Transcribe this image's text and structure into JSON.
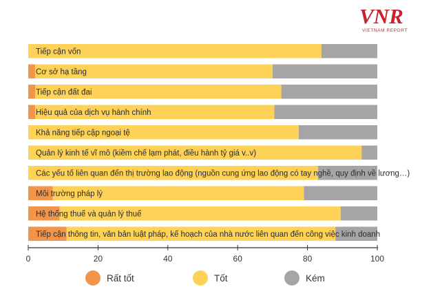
{
  "brand": {
    "logo_text": "VNR",
    "subtitle": "VIETNAM REPORT",
    "color": "#c8232c"
  },
  "chart_data": {
    "type": "bar",
    "orientation": "horizontal",
    "stacked": true,
    "title": "",
    "xlabel": "",
    "ylabel": "",
    "xlim": [
      0,
      100
    ],
    "x_ticks": [
      0,
      20,
      40,
      60,
      80,
      100
    ],
    "grid": false,
    "legend_position": "bottom",
    "categories": [
      "Tiếp cận vốn",
      "Cơ sở hạ tầng",
      "Tiếp cận đất đai",
      "Hiệu quả của dịch vụ hành chính",
      "Khả năng tiếp cập ngoại tệ",
      "Quản lý kinh tế vĩ mô (kiềm chế lạm phát, điều hành tỷ giá v..v)",
      "Các yếu tố liên quan đến thị trường lao động (nguồn cung ứng lao động có tay nghề, quy định về lương…)",
      "Môi trường pháp lý",
      "Hệ thống thuế và quản lý thuế",
      "Tiếp cận thông tin, văn bản luật pháp, kế hoạch của nhà nước liên quan đến công việc kinh doanh"
    ],
    "series": [
      {
        "name": "Rất tốt",
        "color": "#f0954a",
        "values": [
          0,
          2,
          2,
          2,
          0,
          0,
          0,
          7,
          9,
          11
        ]
      },
      {
        "name": "Tốt",
        "color": "#fdd256",
        "values": [
          84,
          68,
          70.5,
          68.5,
          77.5,
          95.5,
          83,
          72,
          80.5,
          77
        ]
      },
      {
        "name": "Kém",
        "color": "#a6a4a7",
        "values": [
          16,
          30,
          27.5,
          29.5,
          22.5,
          4.5,
          17,
          21,
          10.5,
          12
        ]
      }
    ]
  }
}
